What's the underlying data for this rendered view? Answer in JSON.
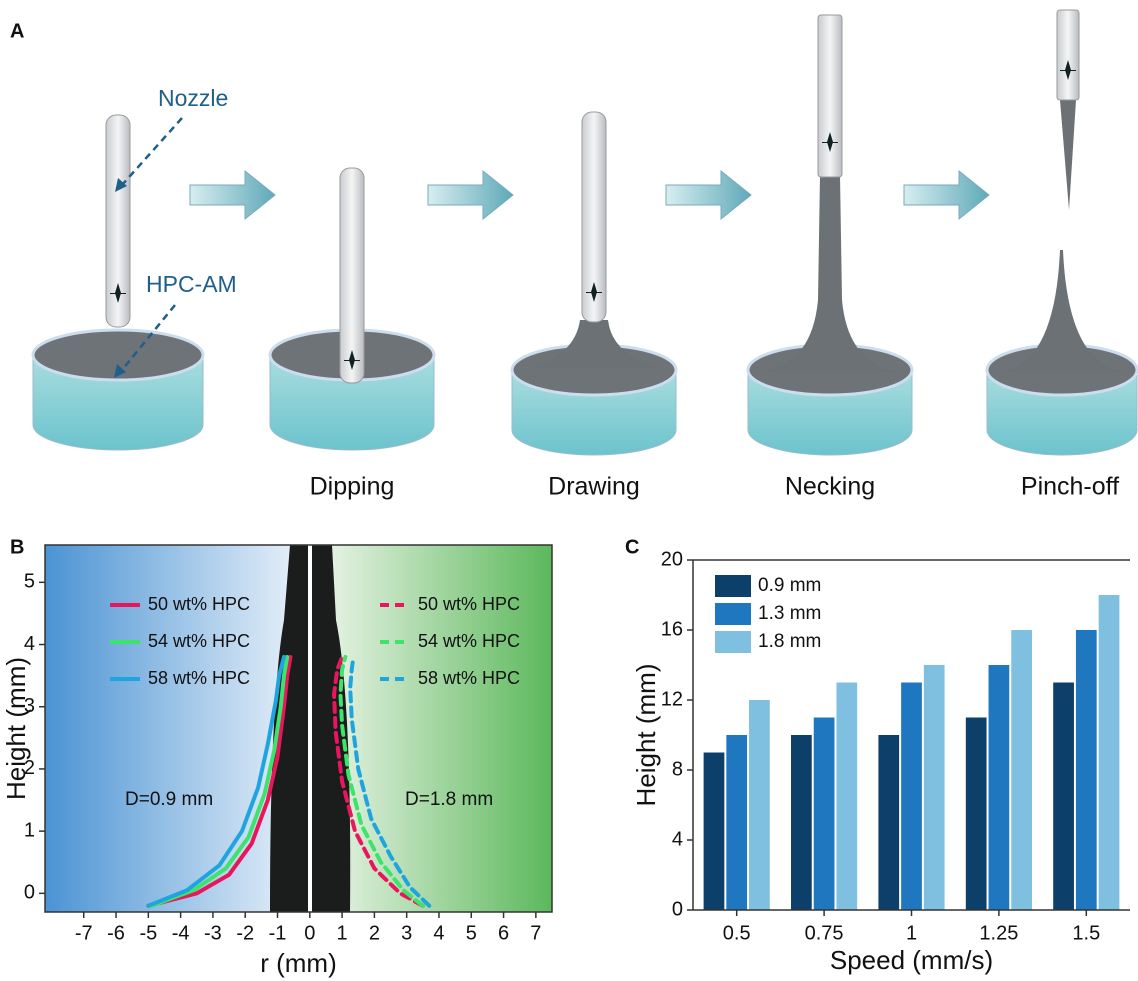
{
  "panel_a": {
    "label": "A",
    "annotations": [
      "Nozzle",
      "HPC-AM"
    ],
    "steps": [
      "Dipping",
      "Drawing",
      "Necking",
      "Pinch-off"
    ]
  },
  "chart_data": [
    {
      "type": "line",
      "panel_label": "B",
      "xlabel": "r (mm)",
      "ylabel": "Height (mm)",
      "xlim": [
        -8.2,
        7.5
      ],
      "xticks": [
        -7,
        -6,
        -5,
        -4,
        -3,
        -2,
        -1,
        0,
        1,
        2,
        3,
        4,
        5,
        6,
        7
      ],
      "ylim": [
        -0.3,
        5.6
      ],
      "yticks": [
        0,
        1,
        2,
        3,
        4,
        5
      ],
      "annotations": [
        "D=0.9 mm",
        "D=1.8 mm"
      ],
      "series": [
        {
          "name": "50 wt% HPC",
          "color": "#e8175d",
          "linestyle": "solid",
          "x": [
            -5,
            -3.5,
            -2.5,
            -1.8,
            -1.3,
            -1,
            -0.8,
            -0.7,
            -0.6
          ],
          "values": [
            -0.2,
            0,
            0.3,
            0.8,
            1.5,
            2.2,
            3,
            3.5,
            3.8
          ]
        },
        {
          "name": "54 wt% HPC",
          "color": "#3de36a",
          "linestyle": "solid",
          "x": [
            -4.9,
            -3.6,
            -2.6,
            -1.9,
            -1.4,
            -1.1,
            -0.9,
            -0.8,
            -0.7
          ],
          "values": [
            -0.2,
            0.05,
            0.4,
            0.9,
            1.6,
            2.3,
            3,
            3.5,
            3.8
          ]
        },
        {
          "name": "58 wt% HPC",
          "color": "#1ea5e0",
          "linestyle": "solid",
          "x": [
            -5,
            -3.8,
            -2.8,
            -2.1,
            -1.6,
            -1.3,
            -1.05,
            -0.95,
            -0.8
          ],
          "values": [
            -0.2,
            0.05,
            0.45,
            1,
            1.7,
            2.4,
            3.1,
            3.5,
            3.8
          ]
        },
        {
          "name": "50 wt% HPC",
          "color": "#e8175d",
          "linestyle": "dashed",
          "x": [
            3.5,
            2.8,
            2,
            1.4,
            1,
            0.8,
            0.75,
            0.85,
            1
          ],
          "values": [
            -0.2,
            0,
            0.4,
            1,
            1.8,
            2.6,
            3.2,
            3.6,
            3.8
          ]
        },
        {
          "name": "54 wt% HPC",
          "color": "#3de36a",
          "linestyle": "dashed",
          "x": [
            3.5,
            2.9,
            2.2,
            1.6,
            1.2,
            1,
            0.95,
            1,
            1.1
          ],
          "values": [
            -0.2,
            0.05,
            0.5,
            1.1,
            1.9,
            2.7,
            3.2,
            3.6,
            3.8
          ]
        },
        {
          "name": "58 wt% HPC",
          "color": "#1ea5e0",
          "linestyle": "dashed",
          "x": [
            3.7,
            3.1,
            2.5,
            1.9,
            1.5,
            1.3,
            1.25,
            1.3,
            1.35
          ],
          "values": [
            -0.2,
            0.1,
            0.6,
            1.2,
            2,
            2.8,
            3.3,
            3.6,
            3.8
          ]
        }
      ]
    },
    {
      "type": "bar",
      "panel_label": "C",
      "xlabel": "Speed (mm/s)",
      "ylabel": "Height (mm)",
      "categories": [
        "0.5",
        "0.75",
        "1",
        "1.25",
        "1.5"
      ],
      "ylim": [
        0,
        20
      ],
      "yticks": [
        0,
        4,
        8,
        12,
        16,
        20
      ],
      "legend": "upper-left",
      "series": [
        {
          "name": "0.9 mm",
          "color": "#0d3f6b",
          "values": [
            9,
            10,
            10,
            11,
            13
          ]
        },
        {
          "name": "1.3 mm",
          "color": "#1f77c0",
          "values": [
            10,
            11,
            13,
            14,
            16
          ]
        },
        {
          "name": "1.8 mm",
          "color": "#7fbfe0",
          "values": [
            12,
            13,
            14,
            16,
            18
          ]
        }
      ]
    }
  ]
}
